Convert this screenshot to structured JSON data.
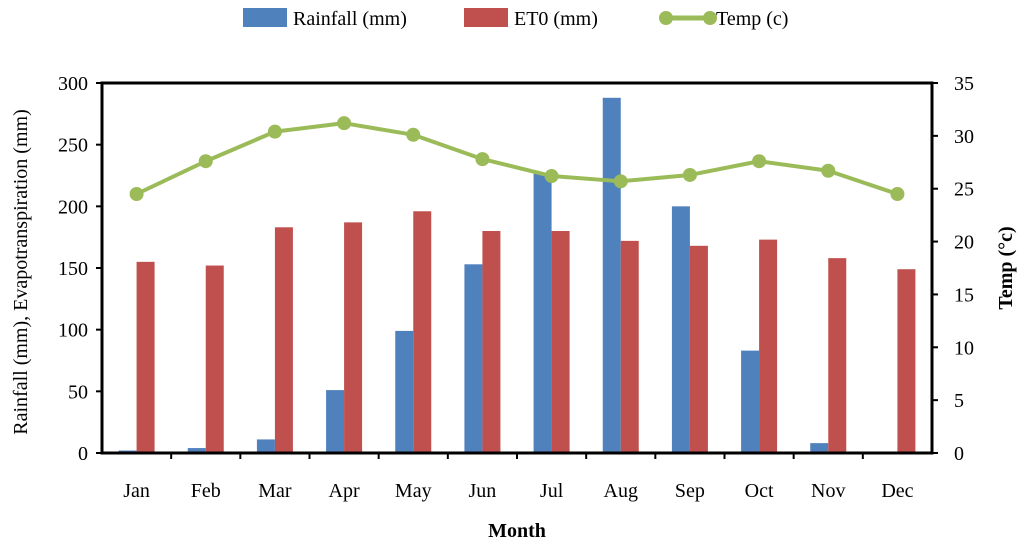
{
  "chart_data": {
    "type": "bar",
    "categories": [
      "Jan",
      "Feb",
      "Mar",
      "Apr",
      "May",
      "Jun",
      "Jul",
      "Aug",
      "Sep",
      "Oct",
      "Nov",
      "Dec"
    ],
    "series": [
      {
        "name": "Rainfall (mm)",
        "type": "bar",
        "axis": "left",
        "color": "#4F81BD",
        "values": [
          2,
          4,
          11,
          51,
          99,
          153,
          227,
          288,
          200,
          83,
          8,
          0
        ]
      },
      {
        "name": "ET0 (mm)",
        "type": "bar",
        "axis": "left",
        "color": "#C0504D",
        "values": [
          155,
          152,
          183,
          187,
          196,
          180,
          180,
          172,
          168,
          173,
          158,
          149
        ]
      },
      {
        "name": "Temp (c)",
        "type": "line",
        "axis": "right",
        "color": "#9BBB59",
        "values": [
          24.5,
          27.6,
          30.4,
          31.2,
          30.1,
          27.8,
          26.2,
          25.7,
          26.3,
          27.6,
          26.7,
          24.5
        ]
      }
    ],
    "xlabel": "Month",
    "ylabel": "Rainfall (mm), Evapotranspiration (mm)",
    "y2label": "Temp (°c)",
    "ylim": [
      0,
      300
    ],
    "y2lim": [
      0,
      35
    ],
    "yticks": [
      0,
      50,
      100,
      150,
      200,
      250,
      300
    ],
    "y2ticks": [
      0,
      5,
      10,
      15,
      20,
      25,
      30,
      35
    ],
    "legend_position": "top",
    "grid": false
  }
}
